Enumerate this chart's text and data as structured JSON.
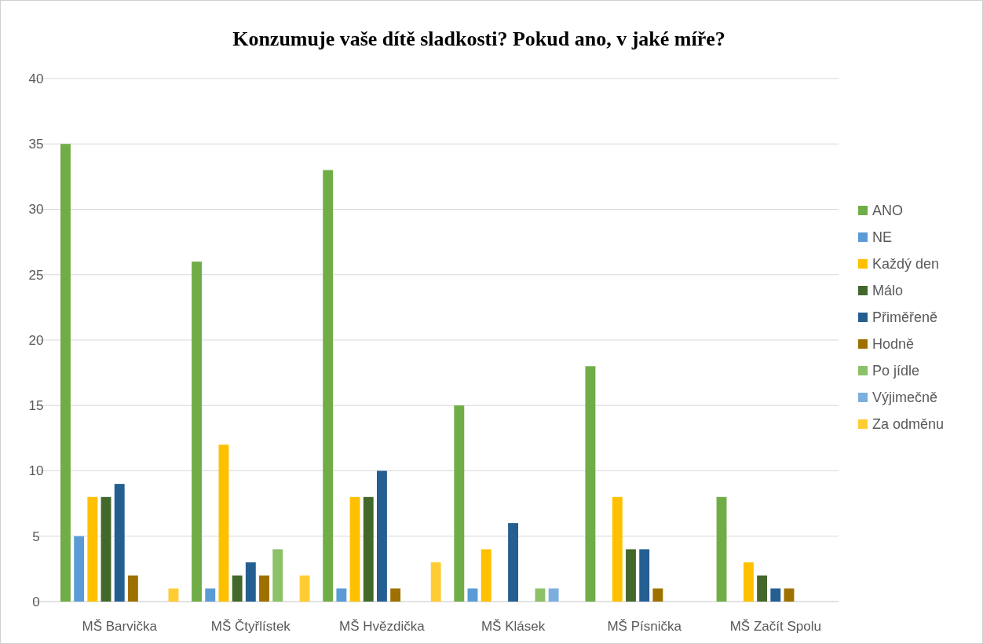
{
  "chart_data": {
    "type": "bar",
    "title": "Konzumuje vaše dítě sladkosti? Pokud ano, v jaké míře?",
    "categories": [
      "MŠ Barvička",
      "MŠ Čtyřlístek",
      "MŠ Hvězdička",
      "MŠ Klásek",
      "MŠ Písnička",
      "MŠ Začít Spolu"
    ],
    "series": [
      {
        "name": "ANO",
        "color": "#70ad47",
        "values": [
          35,
          26,
          33,
          15,
          18,
          8
        ]
      },
      {
        "name": "NE",
        "color": "#5b9bd5",
        "values": [
          5,
          1,
          1,
          1,
          0,
          0
        ]
      },
      {
        "name": "Každý den",
        "color": "#ffc000",
        "values": [
          8,
          12,
          8,
          4,
          8,
          3
        ]
      },
      {
        "name": "Málo",
        "color": "#43682b",
        "values": [
          8,
          2,
          8,
          0,
          4,
          2
        ]
      },
      {
        "name": "Přiměřeně",
        "color": "#255e91",
        "values": [
          9,
          3,
          10,
          6,
          4,
          1
        ]
      },
      {
        "name": "Hodně",
        "color": "#9e7000",
        "values": [
          2,
          2,
          1,
          0,
          1,
          1
        ]
      },
      {
        "name": "Po jídle",
        "color": "#8cc168",
        "values": [
          0,
          4,
          0,
          1,
          0,
          0
        ]
      },
      {
        "name": "Výjimečně",
        "color": "#7cafdd",
        "values": [
          0,
          0,
          0,
          1,
          0,
          0
        ]
      },
      {
        "name": "Za odměnu",
        "color": "#ffcd33",
        "values": [
          1,
          2,
          3,
          0,
          0,
          0
        ]
      }
    ],
    "ylim": [
      0,
      40
    ],
    "yticks": [
      0,
      5,
      10,
      15,
      20,
      25,
      30,
      35,
      40
    ],
    "grid": "y",
    "legend": "right"
  }
}
